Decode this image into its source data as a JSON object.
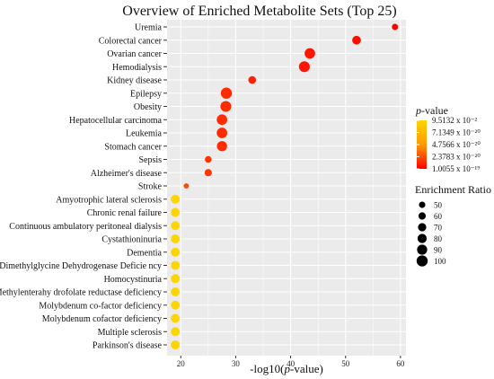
{
  "chart_data": {
    "type": "scatter",
    "title": "Overview of Enriched Metabolite Sets (Top 25)",
    "xlabel_prefix": "-log10(",
    "xlabel_italic": "p",
    "xlabel_suffix": "-value)",
    "xlim": [
      17.5,
      61
    ],
    "xticks": [
      "20",
      "30",
      "40",
      "50",
      "60"
    ],
    "grid": true,
    "categories": [
      "Uremia",
      "Colorectal cancer",
      "Ovarian cancer",
      "Hemodialysis",
      "Kidney disease",
      "Epilepsy",
      "Obesity",
      "Hepatocellular carcinoma",
      "Leukemia",
      "Stomach cancer",
      "Sepsis",
      "Alzheimer's disease",
      "Stroke",
      "Amyotrophic lateral sclerosis",
      "Chronic renal failure",
      "Continuous ambulatory  peritoneal  dialysis",
      "Cystathioninuria",
      "Dementia",
      "Dimethylglycine Dehydrogenase Deficie ncy",
      "Homocystinuria",
      "Methylenterahy drofolate reductase deficiency",
      "Molybdenum co-factor deficiency",
      "Molybdenum cofactor deficiency",
      "Multiple sclerosis",
      "Parkinson's disease"
    ],
    "x": [
      59,
      52,
      43.5,
      42.5,
      33,
      28.3,
      28.2,
      27.5,
      27.5,
      27.5,
      25,
      25,
      21,
      19,
      19,
      19,
      19,
      19,
      19,
      19,
      19,
      19,
      19,
      19,
      19
    ],
    "enrichment_ratio": [
      45,
      70,
      88,
      92,
      60,
      95,
      92,
      88,
      88,
      85,
      50,
      55,
      35,
      72,
      72,
      72,
      72,
      72,
      72,
      72,
      72,
      72,
      72,
      72,
      72
    ],
    "color_level": [
      0.0,
      0.05,
      0.1,
      0.1,
      0.15,
      0.2,
      0.2,
      0.2,
      0.2,
      0.2,
      0.25,
      0.25,
      0.35,
      1.0,
      1.0,
      1.0,
      1.0,
      1.0,
      1.0,
      1.0,
      1.0,
      1.0,
      1.0,
      1.0,
      1.0
    ],
    "color_scale": [
      "#ff0000",
      "#ffd400"
    ],
    "legend_color": {
      "title_italic": "p",
      "title_suffix": "-value",
      "labels": [
        "9.5132 x 10⁻²",
        "7.1349 x 10⁻²⁰",
        "4.7566 x 10⁻²⁰",
        "2.3783 x 10⁻²⁰",
        "1.0055 x 10⁻¹⁹"
      ]
    },
    "legend_size": {
      "title": "Enrichment Ratio",
      "values": [
        50,
        60,
        70,
        80,
        90,
        100
      ]
    }
  }
}
